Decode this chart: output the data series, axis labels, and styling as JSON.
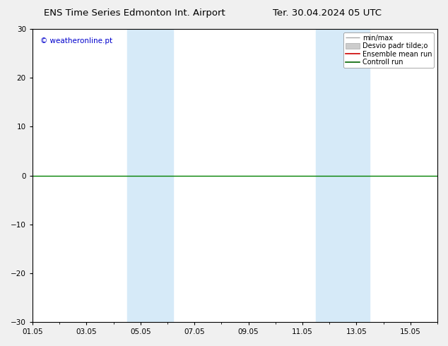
{
  "title_left": "ENS Time Series Edmonton Int. Airport",
  "title_right": "Ter. 30.04.2024 05 UTC",
  "ylim": [
    -30,
    30
  ],
  "yticks": [
    -30,
    -20,
    -10,
    0,
    10,
    20,
    30
  ],
  "xtick_labels": [
    "01.05",
    "03.05",
    "05.05",
    "07.05",
    "09.05",
    "11.05",
    "13.05",
    "15.05"
  ],
  "xtick_positions": [
    0,
    2,
    4,
    6,
    8,
    10,
    12,
    14
  ],
  "xlim": [
    0,
    15
  ],
  "shaded_bands": [
    {
      "start": 3.5,
      "end": 5.2
    },
    {
      "start": 10.5,
      "end": 12.5
    }
  ],
  "shade_color": "#d6eaf8",
  "hline_y": 0,
  "green_line_color": "#008000",
  "watermark": "© weatheronline.pt",
  "title_fontsize": 9.5,
  "tick_fontsize": 7.5,
  "legend_fontsize": 7,
  "bg_color": "#f0f0f0",
  "plot_bg_color": "#ffffff"
}
